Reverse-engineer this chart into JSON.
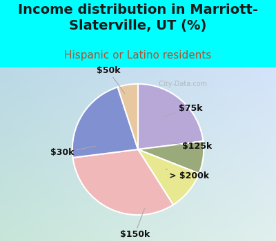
{
  "title": "Income distribution in Marriott-\nSlaterville, UT (%)",
  "subtitle": "Hispanic or Latino residents",
  "title_color": "#1a1a1a",
  "subtitle_color": "#b05030",
  "background_top": "#00ffff",
  "watermark": "  City-Data.com",
  "slices": [
    {
      "label": "$75k",
      "value": 23,
      "color": "#b8a8d8"
    },
    {
      "label": "$125k",
      "value": 8,
      "color": "#9aaa7a"
    },
    {
      "label": "> $200k",
      "value": 10,
      "color": "#e8e890"
    },
    {
      "label": "$150k",
      "value": 32,
      "color": "#f0b8b8"
    },
    {
      "label": "$30k",
      "value": 22,
      "color": "#8090d0"
    },
    {
      "label": "$50k",
      "value": 5,
      "color": "#e8c8a0"
    }
  ],
  "label_fontsize": 9,
  "title_fontsize": 14,
  "subtitle_fontsize": 11
}
